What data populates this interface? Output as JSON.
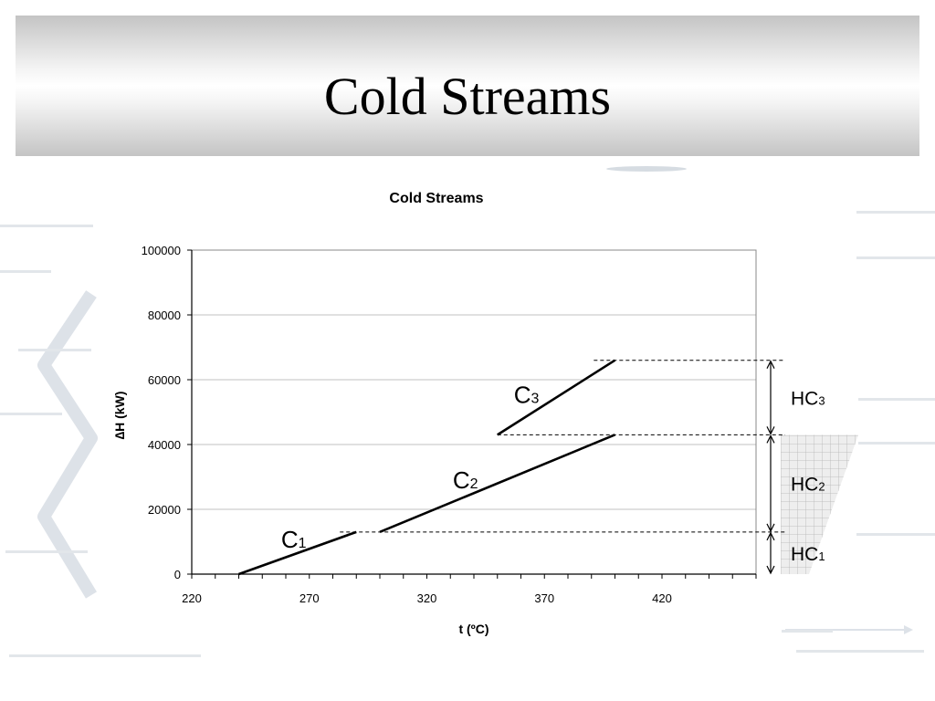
{
  "slide": {
    "title": "Cold Streams"
  },
  "colors": {
    "line": "#000000",
    "grid": "#c0c0c0",
    "hatch": "#c8c8c8",
    "decoration": "#d8dde4"
  },
  "chart_data": {
    "type": "line",
    "title": "Cold Streams",
    "xlabel": "t (ºC)",
    "ylabel": "∆H (kW)",
    "xlim": [
      220,
      460
    ],
    "ylim": [
      0,
      100000
    ],
    "x_ticks": [
      220,
      270,
      320,
      370,
      420
    ],
    "y_ticks": [
      0,
      20000,
      40000,
      60000,
      80000,
      100000
    ],
    "grid": "horizontal",
    "series": [
      {
        "name": "C1",
        "label_main": "C",
        "label_sub": "1",
        "label_at": [
          258,
          8200
        ],
        "x": [
          240,
          290
        ],
        "y": [
          0,
          13000
        ]
      },
      {
        "name": "C2",
        "label_main": "C",
        "label_sub": "2",
        "label_at": [
          331,
          26500
        ],
        "x": [
          300,
          400
        ],
        "y": [
          13000,
          43000
        ]
      },
      {
        "name": "C3",
        "label_main": "C",
        "label_sub": "3",
        "label_at": [
          357,
          52800
        ],
        "x": [
          350,
          400
        ],
        "y": [
          43000,
          66000
        ]
      }
    ],
    "levels": [
      13000,
      43000,
      66000
    ],
    "intervals": [
      {
        "name": "HC1",
        "label_main": "HC",
        "label_sub": "1",
        "from": 0,
        "to": 13000
      },
      {
        "name": "HC2",
        "label_main": "HC",
        "label_sub": "2",
        "from": 13000,
        "to": 43000
      },
      {
        "name": "HC3",
        "label_main": "HC",
        "label_sub": "3",
        "from": 43000,
        "to": 66000
      }
    ]
  }
}
